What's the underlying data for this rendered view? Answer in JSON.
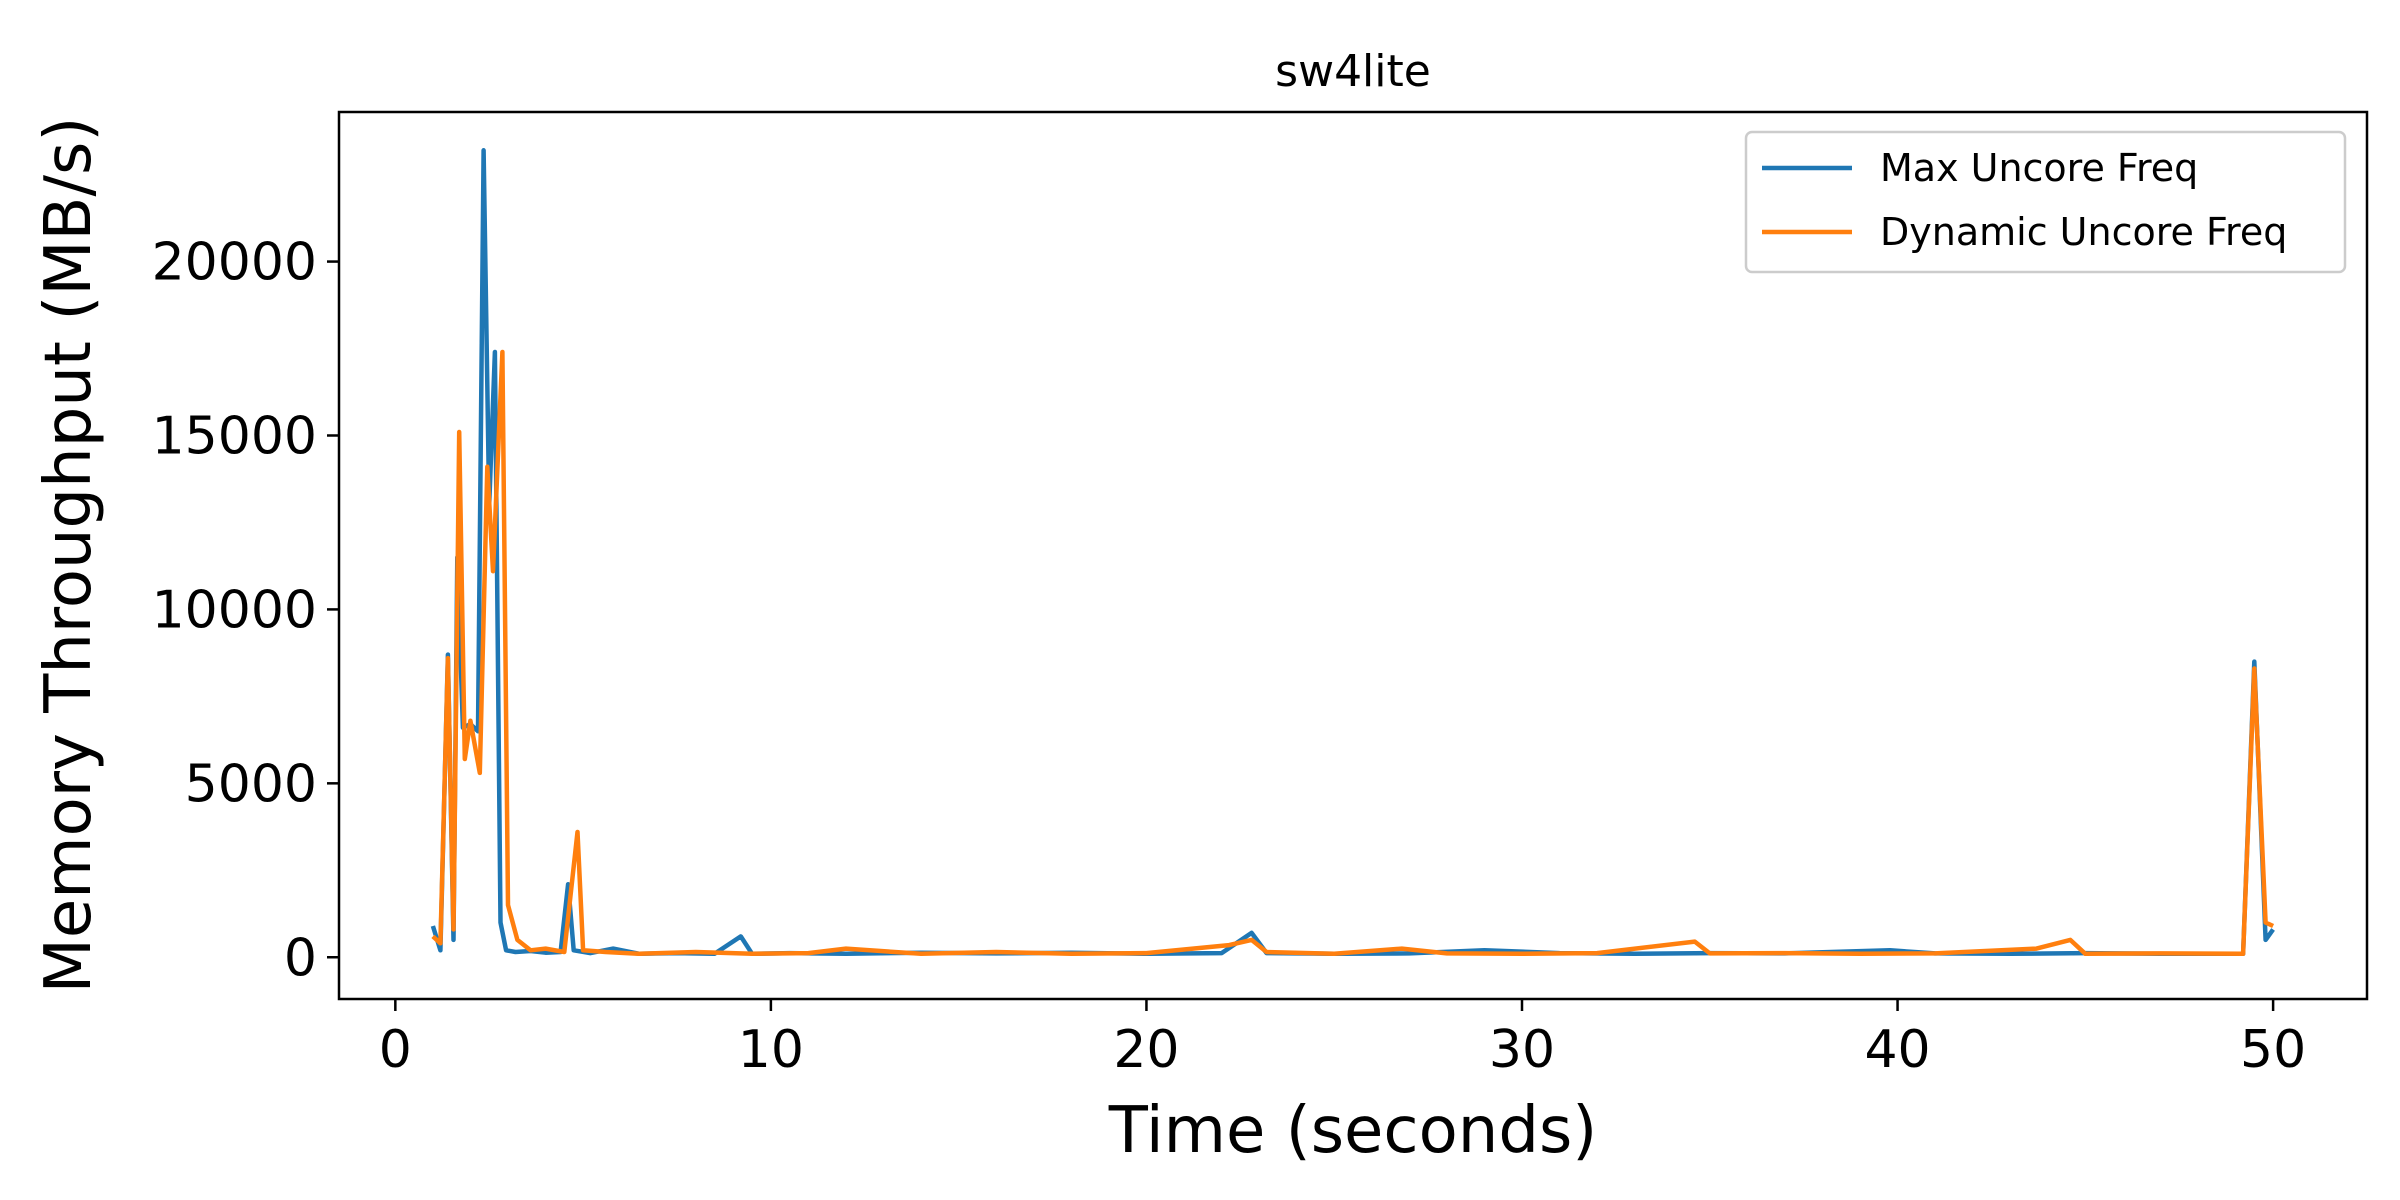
{
  "chart_data": {
    "type": "line",
    "title": "sw4lite",
    "xlabel": "Time (seconds)",
    "ylabel": "Memory Throughput (MB/s)",
    "xlim": [
      -1.5,
      52.5
    ],
    "ylim": [
      -1200,
      24300
    ],
    "xticks": [
      0,
      10,
      20,
      30,
      40,
      50
    ],
    "yticks": [
      0,
      5000,
      10000,
      15000,
      20000
    ],
    "grid": false,
    "legend_position": "top-right",
    "series": [
      {
        "name": "Max Uncore Freq",
        "color": "#1f77b4",
        "points": [
          [
            1.0,
            900
          ],
          [
            1.2,
            200
          ],
          [
            1.4,
            8700
          ],
          [
            1.55,
            500
          ],
          [
            1.65,
            11500
          ],
          [
            1.8,
            6600
          ],
          [
            2.0,
            6700
          ],
          [
            2.2,
            6500
          ],
          [
            2.35,
            23200
          ],
          [
            2.5,
            13000
          ],
          [
            2.65,
            17400
          ],
          [
            2.8,
            1000
          ],
          [
            2.95,
            200
          ],
          [
            3.2,
            150
          ],
          [
            3.6,
            180
          ],
          [
            4.0,
            130
          ],
          [
            4.4,
            150
          ],
          [
            4.6,
            2100
          ],
          [
            4.75,
            200
          ],
          [
            5.2,
            120
          ],
          [
            5.8,
            250
          ],
          [
            6.5,
            100
          ],
          [
            7.5,
            120
          ],
          [
            8.5,
            100
          ],
          [
            9.2,
            600
          ],
          [
            9.5,
            100
          ],
          [
            10.5,
            120
          ],
          [
            12,
            100
          ],
          [
            14,
            130
          ],
          [
            16,
            110
          ],
          [
            18,
            130
          ],
          [
            20,
            100
          ],
          [
            22,
            120
          ],
          [
            22.8,
            700
          ],
          [
            23.2,
            120
          ],
          [
            25,
            100
          ],
          [
            27,
            110
          ],
          [
            29,
            200
          ],
          [
            31,
            120
          ],
          [
            33,
            100
          ],
          [
            35,
            120
          ],
          [
            37,
            110
          ],
          [
            39.8,
            200
          ],
          [
            41,
            110
          ],
          [
            43,
            100
          ],
          [
            45,
            120
          ],
          [
            47,
            100
          ],
          [
            49.2,
            100
          ],
          [
            49.5,
            8500
          ],
          [
            49.8,
            500
          ],
          [
            50.0,
            800
          ]
        ]
      },
      {
        "name": "Dynamic Uncore Freq",
        "color": "#ff7f0e",
        "points": [
          [
            1.0,
            600
          ],
          [
            1.2,
            400
          ],
          [
            1.4,
            8600
          ],
          [
            1.55,
            800
          ],
          [
            1.7,
            15100
          ],
          [
            1.85,
            5700
          ],
          [
            2.0,
            6800
          ],
          [
            2.25,
            5300
          ],
          [
            2.45,
            14100
          ],
          [
            2.6,
            11100
          ],
          [
            2.85,
            17400
          ],
          [
            3.0,
            1500
          ],
          [
            3.25,
            500
          ],
          [
            3.6,
            200
          ],
          [
            4.0,
            250
          ],
          [
            4.5,
            150
          ],
          [
            4.85,
            3600
          ],
          [
            5.0,
            200
          ],
          [
            5.6,
            150
          ],
          [
            6.5,
            100
          ],
          [
            8,
            150
          ],
          [
            9.5,
            100
          ],
          [
            11,
            120
          ],
          [
            12,
            250
          ],
          [
            14,
            100
          ],
          [
            16,
            150
          ],
          [
            18,
            100
          ],
          [
            20,
            120
          ],
          [
            22.2,
            350
          ],
          [
            22.8,
            500
          ],
          [
            23.2,
            150
          ],
          [
            25,
            100
          ],
          [
            26.8,
            250
          ],
          [
            28,
            110
          ],
          [
            30,
            100
          ],
          [
            32,
            120
          ],
          [
            34.6,
            450
          ],
          [
            35,
            110
          ],
          [
            37,
            120
          ],
          [
            39,
            100
          ],
          [
            41,
            110
          ],
          [
            43.7,
            250
          ],
          [
            44.6,
            500
          ],
          [
            45,
            100
          ],
          [
            47,
            110
          ],
          [
            49.2,
            100
          ],
          [
            49.5,
            8300
          ],
          [
            49.8,
            1000
          ],
          [
            50.0,
            900
          ]
        ]
      }
    ]
  }
}
